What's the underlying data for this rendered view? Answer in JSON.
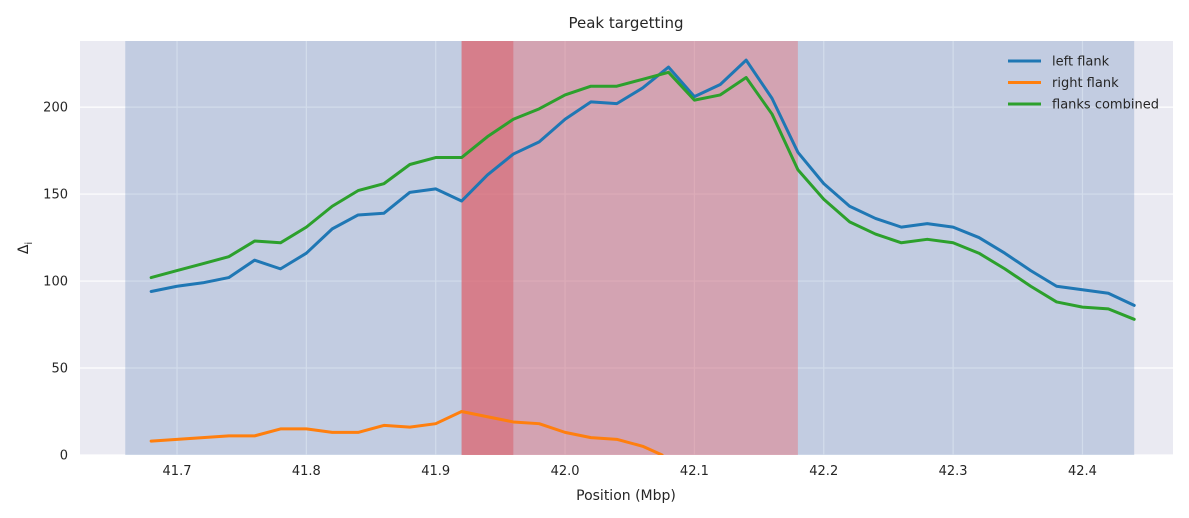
{
  "chart_data": {
    "type": "line",
    "title": "Peak targetting",
    "xlabel": "Position (Mbp)",
    "ylabel": "Δi",
    "xlim": [
      41.625,
      42.47
    ],
    "ylim": [
      0,
      238
    ],
    "xticks": [
      41.7,
      41.8,
      41.9,
      42.0,
      42.1,
      42.2,
      42.3,
      42.4
    ],
    "yticks": [
      0,
      50,
      100,
      150,
      200
    ],
    "grid": true,
    "legend_position": "top-right",
    "background_color": "#eaeaf2",
    "regions": [
      {
        "x0": 41.66,
        "x1": 42.44,
        "color": "#4c72b0",
        "opacity": 0.25
      },
      {
        "x0": 41.92,
        "x1": 42.18,
        "color": "#e8707a",
        "opacity": 0.45
      },
      {
        "x0": 41.92,
        "x1": 41.96,
        "color": "#d9535a",
        "opacity": 0.45
      }
    ],
    "series": [
      {
        "name": "left flank",
        "color": "#1f77b4",
        "x": [
          41.68,
          41.7,
          41.72,
          41.74,
          41.76,
          41.78,
          41.8,
          41.82,
          41.84,
          41.86,
          41.88,
          41.9,
          41.92,
          41.94,
          41.96,
          41.98,
          42.0,
          42.02,
          42.04,
          42.06,
          42.08,
          42.1,
          42.12,
          42.14,
          42.16,
          42.18,
          42.2,
          42.22,
          42.24,
          42.26,
          42.28,
          42.3,
          42.32,
          42.34,
          42.36,
          42.38,
          42.4,
          42.42,
          42.44
        ],
        "y": [
          94,
          97,
          99,
          102,
          112,
          107,
          116,
          130,
          138,
          139,
          151,
          153,
          146,
          161,
          173,
          180,
          193,
          203,
          202,
          211,
          223,
          206,
          213,
          227,
          205,
          174,
          156,
          143,
          136,
          131,
          133,
          131,
          125,
          116,
          106,
          97,
          95,
          93,
          86
        ]
      },
      {
        "name": "right flank",
        "color": "#ff7f0e",
        "x": [
          41.68,
          41.7,
          41.72,
          41.74,
          41.76,
          41.78,
          41.8,
          41.82,
          41.84,
          41.86,
          41.88,
          41.9,
          41.92,
          41.94,
          41.96,
          41.98,
          42.0,
          42.02,
          42.04,
          42.06,
          42.075
        ],
        "y": [
          8,
          9,
          10,
          11,
          11,
          15,
          15,
          13,
          13,
          17,
          16,
          18,
          25,
          22,
          19,
          18,
          13,
          10,
          9,
          5,
          0
        ]
      },
      {
        "name": "flanks combined",
        "color": "#2ca02c",
        "x": [
          41.68,
          41.7,
          41.72,
          41.74,
          41.76,
          41.78,
          41.8,
          41.82,
          41.84,
          41.86,
          41.88,
          41.9,
          41.92,
          41.94,
          41.96,
          41.98,
          42.0,
          42.02,
          42.04,
          42.06,
          42.08,
          42.1,
          42.12,
          42.14,
          42.16,
          42.18,
          42.2,
          42.22,
          42.24,
          42.26,
          42.28,
          42.3,
          42.32,
          42.34,
          42.36,
          42.38,
          42.4,
          42.42,
          42.44
        ],
        "y": [
          102,
          106,
          110,
          114,
          123,
          122,
          131,
          143,
          152,
          156,
          167,
          171,
          171,
          183,
          193,
          199,
          207,
          212,
          212,
          216,
          220,
          204,
          207,
          217,
          196,
          164,
          147,
          134,
          127,
          122,
          124,
          122,
          116,
          107,
          97,
          88,
          85,
          84,
          78
        ]
      }
    ]
  }
}
